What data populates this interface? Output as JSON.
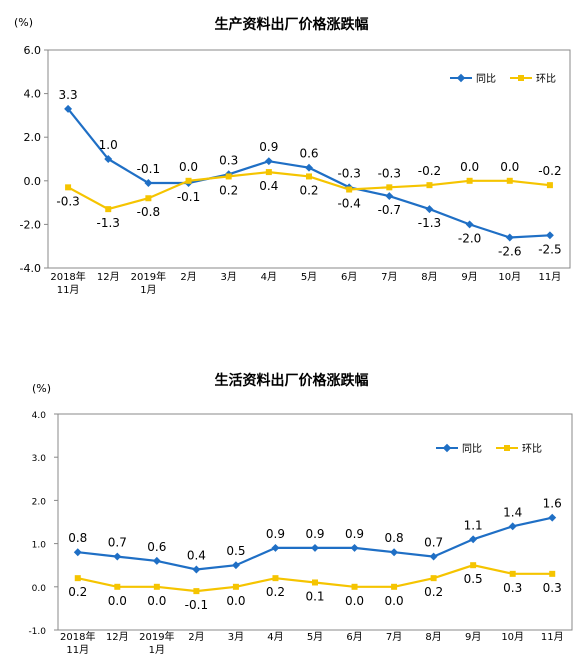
{
  "colors": {
    "yoy": "#1f6fc5",
    "mom": "#f5c400",
    "axis": "#555555",
    "frame": "#888888"
  },
  "chart_data": [
    {
      "type": "line",
      "title": "生产资料出厂价格涨跌幅",
      "unit": "(%)",
      "categories": [
        "2018年\n11月",
        "12月",
        "2019年\n1月",
        "2月",
        "3月",
        "4月",
        "5月",
        "6月",
        "7月",
        "8月",
        "9月",
        "10月",
        "11月"
      ],
      "ylim": [
        -4.0,
        6.0
      ],
      "yticks": [
        "6.0",
        "4.0",
        "2.0",
        "0.0",
        "-2.0",
        "-4.0"
      ],
      "grid": false,
      "legend": "top-right",
      "series": [
        {
          "name": "同比",
          "values": [
            3.3,
            1.0,
            -0.1,
            -0.1,
            0.3,
            0.9,
            0.6,
            -0.3,
            -0.7,
            -1.3,
            -2.0,
            -2.6,
            -2.5
          ],
          "labels": [
            "3.3",
            "1.0",
            "-0.1",
            "-0.1",
            "0.3",
            "0.9",
            "0.6",
            "-0.3",
            "-0.7",
            "-1.3",
            "-2.0",
            "-2.6",
            "-2.5"
          ]
        },
        {
          "name": "环比",
          "values": [
            -0.3,
            -1.3,
            -0.8,
            0.0,
            0.2,
            0.4,
            0.2,
            -0.4,
            -0.3,
            -0.2,
            0.0,
            0.0,
            -0.2
          ],
          "labels": [
            "-0.3",
            "-1.3",
            "-0.8",
            "0.0",
            "0.2",
            "0.4",
            "0.2",
            "-0.4",
            "-0.3",
            "-0.2",
            "0.0",
            "0.0",
            "-0.2"
          ]
        }
      ]
    },
    {
      "type": "line",
      "title": "生活资料出厂价格涨跌幅",
      "unit": "(%)",
      "categories": [
        "2018年\n11月",
        "12月",
        "2019年\n1月",
        "2月",
        "3月",
        "4月",
        "5月",
        "6月",
        "7月",
        "8月",
        "9月",
        "10月",
        "11月"
      ],
      "ylim": [
        -1.0,
        4.0
      ],
      "yticks": [
        "4.0",
        "3.0",
        "2.0",
        "1.0",
        "0.0",
        "-1.0"
      ],
      "grid": false,
      "legend": "top-right",
      "series": [
        {
          "name": "同比",
          "values": [
            0.8,
            0.7,
            0.6,
            0.4,
            0.5,
            0.9,
            0.9,
            0.9,
            0.8,
            0.7,
            1.1,
            1.4,
            1.6
          ],
          "labels": [
            "0.8",
            "0.7",
            "0.6",
            "0.4",
            "0.5",
            "0.9",
            "0.9",
            "0.9",
            "0.8",
            "0.7",
            "1.1",
            "1.4",
            "1.6"
          ]
        },
        {
          "name": "环比",
          "values": [
            0.2,
            0.0,
            0.0,
            -0.1,
            0.0,
            0.2,
            0.1,
            0.0,
            0.0,
            0.2,
            0.5,
            0.3,
            0.3
          ],
          "labels": [
            "0.2",
            "0.0",
            "0.0",
            "-0.1",
            "0.0",
            "0.2",
            "0.1",
            "0.0",
            "0.0",
            "0.2",
            "0.5",
            "0.3",
            "0.3"
          ]
        }
      ]
    }
  ]
}
